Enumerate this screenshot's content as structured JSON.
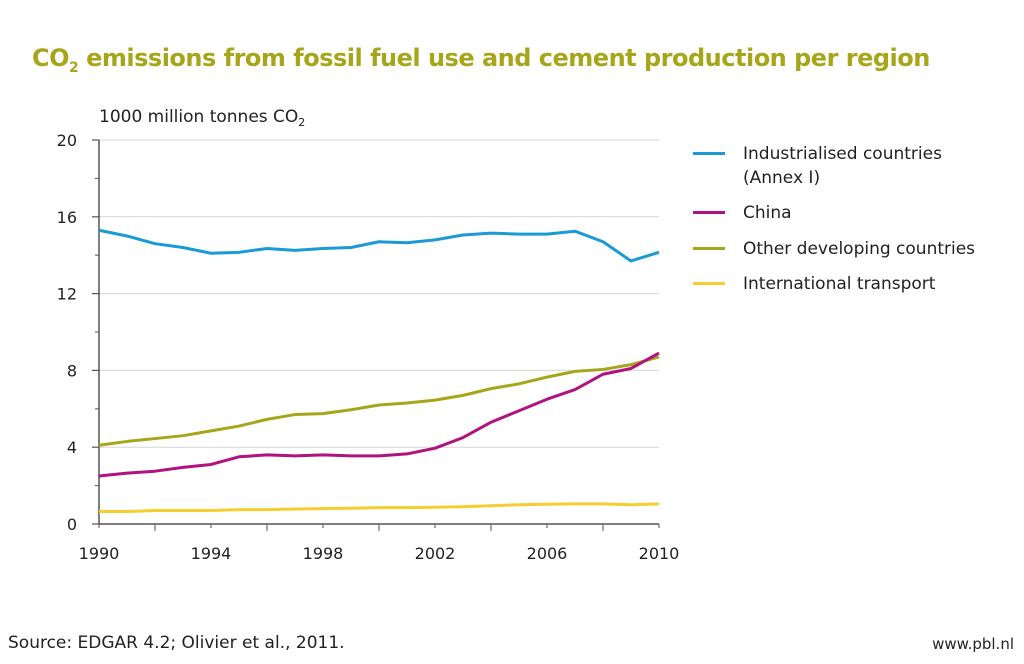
{
  "title_main": "CO",
  "title_sub": "2",
  "title_rest": " emissions from fossil fuel use and cement production per region",
  "source": "Source: EDGAR 4.2; Olivier et al., 2011.",
  "url": "www.pbl.nl",
  "chart_data": {
    "type": "line",
    "title": "CO2 emissions from fossil fuel use and cement production per region",
    "ylabel": "1000 million tonnes CO2",
    "xlabel": "",
    "xlim": [
      1990,
      2010
    ],
    "ylim": [
      0,
      20
    ],
    "xticks": [
      1990,
      1994,
      1998,
      2002,
      2006,
      2010
    ],
    "yticks": [
      0,
      4,
      8,
      12,
      16,
      20
    ],
    "grid": true,
    "legend_position": "right",
    "x": [
      1990,
      1991,
      1992,
      1993,
      1994,
      1995,
      1996,
      1997,
      1998,
      1999,
      2000,
      2001,
      2002,
      2003,
      2004,
      2005,
      2006,
      2007,
      2008,
      2009,
      2010
    ],
    "series": [
      {
        "name": "Industrialised countries (Annex I)",
        "color": "#1a9ad6",
        "values": [
          15.3,
          15.0,
          14.6,
          14.4,
          14.1,
          14.15,
          14.35,
          14.25,
          14.35,
          14.4,
          14.7,
          14.65,
          14.8,
          15.05,
          15.15,
          15.1,
          15.1,
          15.25,
          14.7,
          13.7,
          14.15
        ]
      },
      {
        "name": "China",
        "color": "#b0127f",
        "values": [
          2.5,
          2.65,
          2.75,
          2.95,
          3.1,
          3.5,
          3.6,
          3.55,
          3.6,
          3.55,
          3.55,
          3.65,
          3.95,
          4.5,
          5.3,
          5.9,
          6.5,
          7.0,
          7.8,
          8.1,
          8.9
        ]
      },
      {
        "name": "Other developing countries",
        "color": "#a7a61b",
        "values": [
          4.1,
          4.3,
          4.45,
          4.6,
          4.85,
          5.1,
          5.45,
          5.7,
          5.75,
          5.95,
          6.2,
          6.3,
          6.45,
          6.7,
          7.05,
          7.3,
          7.65,
          7.95,
          8.05,
          8.3,
          8.7
        ]
      },
      {
        "name": "International transport",
        "color": "#f4cf2e",
        "values": [
          0.65,
          0.65,
          0.7,
          0.7,
          0.7,
          0.75,
          0.75,
          0.78,
          0.8,
          0.82,
          0.85,
          0.85,
          0.87,
          0.9,
          0.95,
          1.0,
          1.03,
          1.05,
          1.05,
          1.0,
          1.05
        ]
      }
    ]
  },
  "legend": [
    {
      "line1": "Industrialised countries",
      "line2": "(Annex I)"
    },
    {
      "line1": "China"
    },
    {
      "line1": "Other developing countries"
    },
    {
      "line1": "International transport"
    }
  ]
}
